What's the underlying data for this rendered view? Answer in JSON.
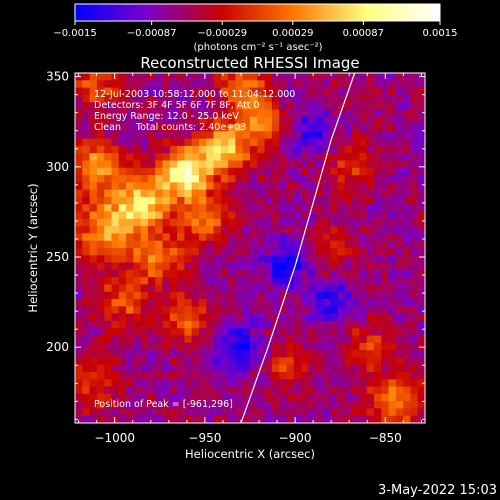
{
  "chart_data": {
    "type": "heatmap",
    "title": "Reconstructed RHESSI Image",
    "xlabel": "Heliocentric X (arcsec)",
    "ylabel": "Heliocentric Y (arcsec)",
    "xlim": [
      -1022,
      -828
    ],
    "ylim": [
      158,
      352
    ],
    "x_ticks": [
      -1000,
      -950,
      -900,
      -850
    ],
    "x_tick_labels": [
      "−1000",
      "−950",
      "−900",
      "−850"
    ],
    "y_ticks": [
      200,
      250,
      300,
      350
    ],
    "y_tick_labels": [
      "200",
      "250",
      "300",
      "350"
    ],
    "colorbar": {
      "min": -0.0015,
      "max": 0.0015,
      "tick_values": [
        -0.0015,
        -0.00087,
        -0.00029,
        0.00029,
        0.00087,
        0.0015
      ],
      "tick_labels": [
        "−0.0015",
        "−0.00087",
        "−0.00029",
        "0.00029",
        "0.00087",
        "0.0015"
      ],
      "unit_label": "(photons cm⁻² s⁻¹ asec⁻²)",
      "colormap": [
        "#0000ff",
        "#7a00c8",
        "#c80000",
        "#ff7800",
        "#ffff80",
        "#ffffff"
      ]
    },
    "annotations": [
      "12-Jul-2003 10:58:12.000 to 11:04:12.000",
      "Detectors: 3F 4F 5F 6F 7F 8F, Att 0",
      "Energy Range: 12.0 - 25.0 keV",
      "Clean     Total counts: 2.40e+03"
    ],
    "peak_label": "Position of Peak = [-961,296]",
    "peak_position": [
      -961,
      296
    ],
    "limb_curve": [
      [
        -930,
        158
      ],
      [
        -915,
        200
      ],
      [
        -900,
        245
      ],
      [
        -890,
        280
      ],
      [
        -880,
        315
      ],
      [
        -867,
        352
      ]
    ]
  },
  "footer": {
    "date": "3-May-2022 15:03"
  }
}
